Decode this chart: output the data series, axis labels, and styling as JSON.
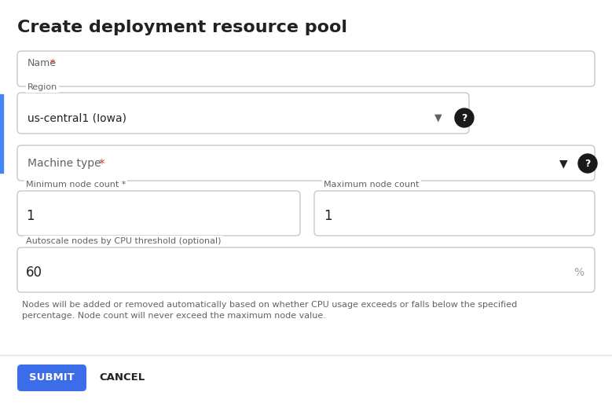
{
  "title": "Create deployment resource pool",
  "bg_color": "#ffffff",
  "label_color": "#5f6368",
  "text_color": "#202124",
  "red_star": "#d93025",
  "submit_bg": "#3c6de9",
  "submit_text": "#ffffff",
  "cancel_text": "#202124",
  "border_color": "#c8c8c8",
  "left_bar_color": "#4285f4",
  "divider_color": "#e0e0e0",
  "percent_color": "#9aa0a6",
  "helper_color": "#5f6368",
  "fields": {
    "name_label": "Name",
    "region_label": "Region",
    "region_value": "us-central1 (Iowa)",
    "machine_label": "Machine type",
    "min_label": "Minimum node count *",
    "min_value": "1",
    "max_label": "Maximum node count",
    "max_value": "1",
    "autoscale_label": "Autoscale nodes by CPU threshold (optional)",
    "autoscale_value": "60",
    "percent_label": "%",
    "helper_text1": "Nodes will be added or removed automatically based on whether CPU usage exceeds or falls below the specified",
    "helper_text2": "percentage. Node count will never exceed the maximum node value."
  },
  "figw": 7.79,
  "figh": 5.27,
  "dpi": 100
}
